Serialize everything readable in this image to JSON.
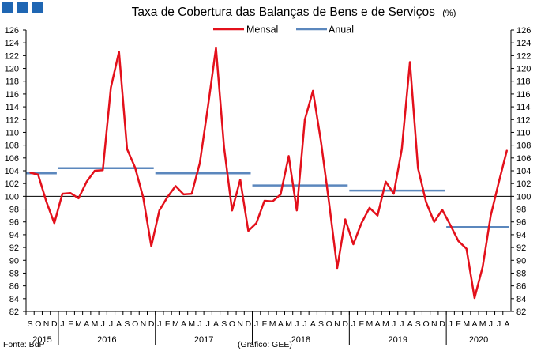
{
  "chart_data": {
    "type": "line",
    "title": "Taxa de Cobertura das Balanças de Bens e de Serviços",
    "title_unit": "(%)",
    "ylim": [
      82,
      126
    ],
    "y_ticks": [
      82,
      84,
      86,
      88,
      90,
      92,
      94,
      96,
      98,
      100,
      102,
      104,
      106,
      108,
      110,
      112,
      114,
      116,
      118,
      120,
      122,
      124,
      126
    ],
    "reference_line": 100,
    "grid": false,
    "legend_position": "top-center",
    "month_labels": [
      "S",
      "O",
      "N",
      "D",
      "J",
      "F",
      "M",
      "A",
      "M",
      "J",
      "J",
      "A",
      "S",
      "O",
      "N",
      "D",
      "J",
      "F",
      "M",
      "A",
      "M",
      "J",
      "J",
      "A",
      "S",
      "O",
      "N",
      "D",
      "J",
      "F",
      "M",
      "A",
      "M",
      "J",
      "J",
      "A",
      "S",
      "O",
      "N",
      "D",
      "J",
      "F",
      "M",
      "A",
      "M",
      "J",
      "J",
      "A",
      "S",
      "O",
      "N",
      "D",
      "J",
      "F",
      "M",
      "A",
      "M",
      "J",
      "J",
      "A"
    ],
    "year_labels": [
      "2015",
      "2016",
      "2017",
      "2018",
      "2019",
      "2020"
    ],
    "series": [
      {
        "name": "Mensal",
        "color": "#e3101b",
        "values": [
          103.7,
          103.4,
          99.2,
          95.8,
          100.4,
          100.5,
          99.7,
          102.3,
          104.0,
          104.1,
          117.0,
          122.6,
          107.4,
          104.5,
          99.8,
          92.2,
          97.8,
          99.9,
          101.6,
          100.3,
          100.4,
          105.2,
          114.0,
          123.2,
          107.7,
          97.8,
          102.6,
          94.6,
          95.8,
          99.3,
          99.2,
          100.3,
          106.3,
          97.8,
          112.0,
          116.5,
          108.5,
          99.0,
          88.8,
          96.4,
          92.5,
          95.8,
          98.2,
          97.0,
          102.3,
          100.4,
          107.4,
          121.0,
          104.4,
          99.1,
          96.0,
          97.9,
          95.5,
          93.0,
          91.8,
          84.1,
          89.0,
          97.0,
          102.2,
          107.2
        ]
      },
      {
        "name": "Anual",
        "color": "#5b87bd",
        "segments": [
          {
            "year": "2015",
            "value": 103.6
          },
          {
            "year": "2016",
            "value": 104.4
          },
          {
            "year": "2017",
            "value": 103.6
          },
          {
            "year": "2018",
            "value": 101.7
          },
          {
            "year": "2019",
            "value": 100.9
          },
          {
            "year": "2020",
            "value": 95.2
          }
        ]
      }
    ]
  },
  "footer": {
    "source": "Fonte: BdP",
    "credit": "(Gráfico: GEE)"
  },
  "colors": {
    "logo": "#1f66b3",
    "axis": "#000000"
  }
}
